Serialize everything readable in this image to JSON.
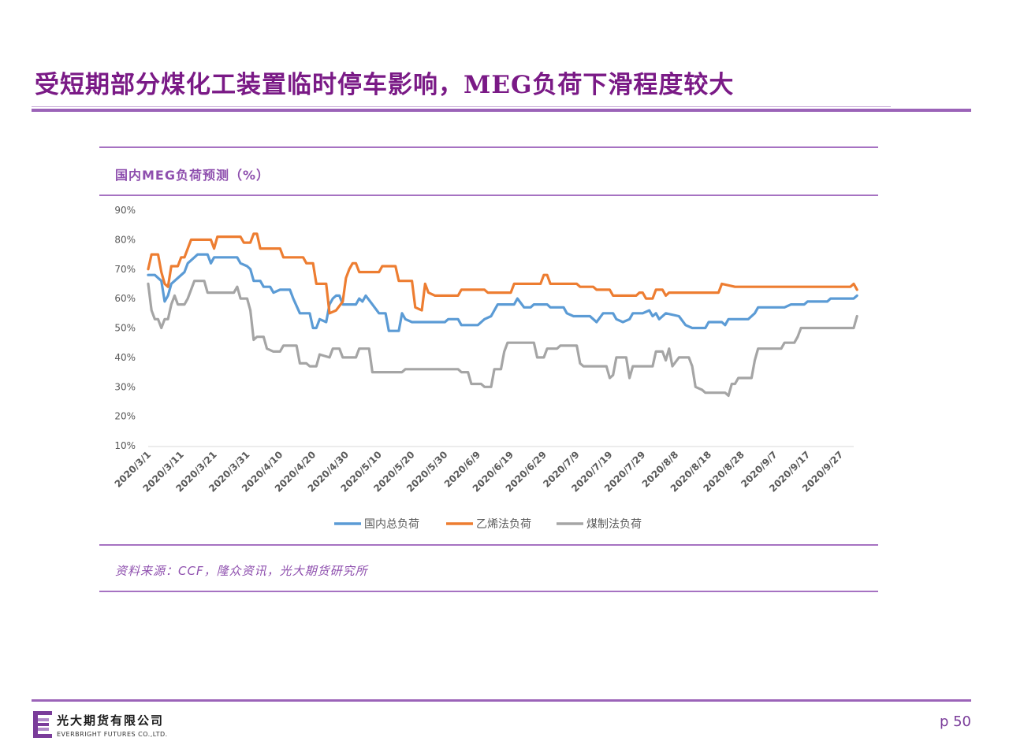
{
  "slide": {
    "title": "受短期部分煤化工装置临时停车影响，MEG负荷下滑程度较大",
    "page_number": "p 50",
    "company_cn": "光大期货有限公司",
    "company_en": "EVERBRIGHT FUTURES CO.,LTD.",
    "source": "资料来源：CCF，隆众资讯，光大期货研究所"
  },
  "colors": {
    "accent": "#8e4fae",
    "total": "#5b9bd5",
    "ethylene": "#ed7d31",
    "coal": "#a5a5a5"
  },
  "chart_data": {
    "type": "line",
    "title": "国内MEG负荷预测（%）",
    "ylim": [
      0.1,
      0.9
    ],
    "ytick_labels": [
      "10%",
      "20%",
      "30%",
      "40%",
      "50%",
      "60%",
      "70%",
      "80%",
      "90%"
    ],
    "ytick_values": [
      0.1,
      0.2,
      0.3,
      0.4,
      0.5,
      0.6,
      0.7,
      0.8,
      0.9
    ],
    "x_start": "2020/3/1",
    "x_end": "2020/10/1",
    "xtick_labels": [
      "2020/3/1",
      "2020/3/11",
      "2020/3/21",
      "2020/3/31",
      "2020/4/10",
      "2020/4/20",
      "2020/4/30",
      "2020/5/10",
      "2020/5/20",
      "2020/5/30",
      "2020/6/9",
      "2020/6/19",
      "2020/6/29",
      "2020/7/9",
      "2020/7/19",
      "2020/7/29",
      "2020/8/8",
      "2020/8/18",
      "2020/8/28",
      "2020/9/7",
      "2020/9/17",
      "2020/9/27"
    ],
    "grid": false,
    "legend_position": "bottom",
    "series": [
      {
        "name": "国内总负荷",
        "color": "#5b9bd5",
        "points": [
          [
            "2020/3/1",
            0.68
          ],
          [
            "2020/3/3",
            0.68
          ],
          [
            "2020/3/5",
            0.66
          ],
          [
            "2020/3/6",
            0.59
          ],
          [
            "2020/3/7",
            0.61
          ],
          [
            "2020/3/8",
            0.65
          ],
          [
            "2020/3/10",
            0.67
          ],
          [
            "2020/3/12",
            0.69
          ],
          [
            "2020/3/13",
            0.72
          ],
          [
            "2020/3/15",
            0.74
          ],
          [
            "2020/3/16",
            0.75
          ],
          [
            "2020/3/19",
            0.75
          ],
          [
            "2020/3/20",
            0.72
          ],
          [
            "2020/3/21",
            0.74
          ],
          [
            "2020/3/28",
            0.74
          ],
          [
            "2020/3/29",
            0.72
          ],
          [
            "2020/3/31",
            0.71
          ],
          [
            "2020/4/1",
            0.7
          ],
          [
            "2020/4/2",
            0.66
          ],
          [
            "2020/4/4",
            0.66
          ],
          [
            "2020/4/5",
            0.64
          ],
          [
            "2020/4/7",
            0.64
          ],
          [
            "2020/4/8",
            0.62
          ],
          [
            "2020/4/10",
            0.63
          ],
          [
            "2020/4/13",
            0.63
          ],
          [
            "2020/4/14",
            0.6
          ],
          [
            "2020/4/16",
            0.55
          ],
          [
            "2020/4/19",
            0.55
          ],
          [
            "2020/4/20",
            0.5
          ],
          [
            "2020/4/21",
            0.5
          ],
          [
            "2020/4/22",
            0.53
          ],
          [
            "2020/4/24",
            0.52
          ],
          [
            "2020/4/25",
            0.58
          ],
          [
            "2020/4/26",
            0.6
          ],
          [
            "2020/4/27",
            0.61
          ],
          [
            "2020/4/28",
            0.61
          ],
          [
            "2020/4/29",
            0.58
          ],
          [
            "2020/5/3",
            0.58
          ],
          [
            "2020/5/4",
            0.6
          ],
          [
            "2020/5/5",
            0.59
          ],
          [
            "2020/5/6",
            0.61
          ],
          [
            "2020/5/8",
            0.58
          ],
          [
            "2020/5/10",
            0.55
          ],
          [
            "2020/5/12",
            0.55
          ],
          [
            "2020/5/13",
            0.49
          ],
          [
            "2020/5/16",
            0.49
          ],
          [
            "2020/5/17",
            0.55
          ],
          [
            "2020/5/18",
            0.53
          ],
          [
            "2020/5/20",
            0.52
          ],
          [
            "2020/5/30",
            0.52
          ],
          [
            "2020/5/31",
            0.53
          ],
          [
            "2020/6/3",
            0.53
          ],
          [
            "2020/6/4",
            0.51
          ],
          [
            "2020/6/9",
            0.51
          ],
          [
            "2020/6/11",
            0.53
          ],
          [
            "2020/6/13",
            0.54
          ],
          [
            "2020/6/15",
            0.58
          ],
          [
            "2020/6/20",
            0.58
          ],
          [
            "2020/6/21",
            0.6
          ],
          [
            "2020/6/23",
            0.57
          ],
          [
            "2020/6/25",
            0.57
          ],
          [
            "2020/6/26",
            0.58
          ],
          [
            "2020/6/30",
            0.58
          ],
          [
            "2020/7/1",
            0.57
          ],
          [
            "2020/7/5",
            0.57
          ],
          [
            "2020/7/6",
            0.55
          ],
          [
            "2020/7/8",
            0.54
          ],
          [
            "2020/7/13",
            0.54
          ],
          [
            "2020/7/15",
            0.52
          ],
          [
            "2020/7/17",
            0.55
          ],
          [
            "2020/7/20",
            0.55
          ],
          [
            "2020/7/21",
            0.53
          ],
          [
            "2020/7/23",
            0.52
          ],
          [
            "2020/7/25",
            0.53
          ],
          [
            "2020/7/26",
            0.55
          ],
          [
            "2020/7/29",
            0.55
          ],
          [
            "2020/7/31",
            0.56
          ],
          [
            "2020/8/1",
            0.54
          ],
          [
            "2020/8/2",
            0.55
          ],
          [
            "2020/8/3",
            0.53
          ],
          [
            "2020/8/5",
            0.55
          ],
          [
            "2020/8/9",
            0.54
          ],
          [
            "2020/8/11",
            0.51
          ],
          [
            "2020/8/13",
            0.5
          ],
          [
            "2020/8/17",
            0.5
          ],
          [
            "2020/8/18",
            0.52
          ],
          [
            "2020/8/22",
            0.52
          ],
          [
            "2020/8/23",
            0.51
          ],
          [
            "2020/8/24",
            0.53
          ],
          [
            "2020/8/25",
            0.53
          ],
          [
            "2020/8/30",
            0.53
          ],
          [
            "2020/9/1",
            0.55
          ],
          [
            "2020/9/2",
            0.57
          ],
          [
            "2020/9/10",
            0.57
          ],
          [
            "2020/9/12",
            0.58
          ],
          [
            "2020/9/16",
            0.58
          ],
          [
            "2020/9/17",
            0.59
          ],
          [
            "2020/9/23",
            0.59
          ],
          [
            "2020/9/24",
            0.6
          ],
          [
            "2020/10/1",
            0.6
          ],
          [
            "2020/10/2",
            0.61
          ]
        ]
      },
      {
        "name": "乙烯法负荷",
        "color": "#ed7d31",
        "points": [
          [
            "2020/3/1",
            0.7
          ],
          [
            "2020/3/2",
            0.75
          ],
          [
            "2020/3/4",
            0.75
          ],
          [
            "2020/3/5",
            0.69
          ],
          [
            "2020/3/6",
            0.65
          ],
          [
            "2020/3/7",
            0.64
          ],
          [
            "2020/3/8",
            0.71
          ],
          [
            "2020/3/10",
            0.71
          ],
          [
            "2020/3/11",
            0.74
          ],
          [
            "2020/3/12",
            0.74
          ],
          [
            "2020/3/14",
            0.8
          ],
          [
            "2020/3/20",
            0.8
          ],
          [
            "2020/3/21",
            0.77
          ],
          [
            "2020/3/22",
            0.81
          ],
          [
            "2020/3/29",
            0.81
          ],
          [
            "2020/3/30",
            0.79
          ],
          [
            "2020/4/1",
            0.79
          ],
          [
            "2020/4/2",
            0.82
          ],
          [
            "2020/4/3",
            0.82
          ],
          [
            "2020/4/4",
            0.77
          ],
          [
            "2020/4/10",
            0.77
          ],
          [
            "2020/4/11",
            0.74
          ],
          [
            "2020/4/17",
            0.74
          ],
          [
            "2020/4/18",
            0.72
          ],
          [
            "2020/4/20",
            0.72
          ],
          [
            "2020/4/21",
            0.65
          ],
          [
            "2020/4/24",
            0.65
          ],
          [
            "2020/4/25",
            0.55
          ],
          [
            "2020/4/27",
            0.56
          ],
          [
            "2020/4/29",
            0.59
          ],
          [
            "2020/4/30",
            0.67
          ],
          [
            "2020/5/1",
            0.7
          ],
          [
            "2020/5/2",
            0.72
          ],
          [
            "2020/5/3",
            0.72
          ],
          [
            "2020/5/4",
            0.69
          ],
          [
            "2020/5/10",
            0.69
          ],
          [
            "2020/5/11",
            0.71
          ],
          [
            "2020/5/15",
            0.71
          ],
          [
            "2020/5/16",
            0.66
          ],
          [
            "2020/5/20",
            0.66
          ],
          [
            "2020/5/21",
            0.57
          ],
          [
            "2020/5/23",
            0.56
          ],
          [
            "2020/5/24",
            0.65
          ],
          [
            "2020/5/25",
            0.62
          ],
          [
            "2020/5/27",
            0.61
          ],
          [
            "2020/6/3",
            0.61
          ],
          [
            "2020/6/4",
            0.63
          ],
          [
            "2020/6/11",
            0.63
          ],
          [
            "2020/6/12",
            0.62
          ],
          [
            "2020/6/19",
            0.62
          ],
          [
            "2020/6/20",
            0.65
          ],
          [
            "2020/6/28",
            0.65
          ],
          [
            "2020/6/29",
            0.68
          ],
          [
            "2020/6/30",
            0.68
          ],
          [
            "2020/7/1",
            0.65
          ],
          [
            "2020/7/9",
            0.65
          ],
          [
            "2020/7/10",
            0.64
          ],
          [
            "2020/7/14",
            0.64
          ],
          [
            "2020/7/15",
            0.63
          ],
          [
            "2020/7/19",
            0.63
          ],
          [
            "2020/7/20",
            0.61
          ],
          [
            "2020/7/27",
            0.61
          ],
          [
            "2020/7/28",
            0.62
          ],
          [
            "2020/7/29",
            0.62
          ],
          [
            "2020/7/30",
            0.6
          ],
          [
            "2020/8/1",
            0.6
          ],
          [
            "2020/8/2",
            0.63
          ],
          [
            "2020/8/4",
            0.63
          ],
          [
            "2020/8/5",
            0.61
          ],
          [
            "2020/8/6",
            0.62
          ],
          [
            "2020/8/21",
            0.62
          ],
          [
            "2020/8/22",
            0.65
          ],
          [
            "2020/8/26",
            0.64
          ],
          [
            "2020/9/30",
            0.64
          ],
          [
            "2020/10/1",
            0.65
          ],
          [
            "2020/10/2",
            0.63
          ]
        ]
      },
      {
        "name": "煤制法负荷",
        "color": "#a5a5a5",
        "points": [
          [
            "2020/3/1",
            0.65
          ],
          [
            "2020/3/2",
            0.56
          ],
          [
            "2020/3/3",
            0.53
          ],
          [
            "2020/3/4",
            0.53
          ],
          [
            "2020/3/5",
            0.5
          ],
          [
            "2020/3/6",
            0.53
          ],
          [
            "2020/3/7",
            0.53
          ],
          [
            "2020/3/8",
            0.58
          ],
          [
            "2020/3/9",
            0.61
          ],
          [
            "2020/3/10",
            0.58
          ],
          [
            "2020/3/12",
            0.58
          ],
          [
            "2020/3/13",
            0.6
          ],
          [
            "2020/3/15",
            0.66
          ],
          [
            "2020/3/18",
            0.66
          ],
          [
            "2020/3/19",
            0.62
          ],
          [
            "2020/3/27",
            0.62
          ],
          [
            "2020/3/28",
            0.64
          ],
          [
            "2020/3/29",
            0.6
          ],
          [
            "2020/3/31",
            0.6
          ],
          [
            "2020/4/1",
            0.56
          ],
          [
            "2020/4/2",
            0.46
          ],
          [
            "2020/4/3",
            0.47
          ],
          [
            "2020/4/5",
            0.47
          ],
          [
            "2020/4/6",
            0.43
          ],
          [
            "2020/4/8",
            0.42
          ],
          [
            "2020/4/10",
            0.42
          ],
          [
            "2020/4/11",
            0.44
          ],
          [
            "2020/4/15",
            0.44
          ],
          [
            "2020/4/16",
            0.38
          ],
          [
            "2020/4/18",
            0.38
          ],
          [
            "2020/4/19",
            0.37
          ],
          [
            "2020/4/21",
            0.37
          ],
          [
            "2020/4/22",
            0.41
          ],
          [
            "2020/4/25",
            0.4
          ],
          [
            "2020/4/26",
            0.43
          ],
          [
            "2020/4/28",
            0.43
          ],
          [
            "2020/4/29",
            0.4
          ],
          [
            "2020/5/3",
            0.4
          ],
          [
            "2020/5/4",
            0.43
          ],
          [
            "2020/5/7",
            0.43
          ],
          [
            "2020/5/8",
            0.35
          ],
          [
            "2020/5/17",
            0.35
          ],
          [
            "2020/5/18",
            0.36
          ],
          [
            "2020/6/3",
            0.36
          ],
          [
            "2020/6/4",
            0.35
          ],
          [
            "2020/6/6",
            0.35
          ],
          [
            "2020/6/7",
            0.31
          ],
          [
            "2020/6/10",
            0.31
          ],
          [
            "2020/6/11",
            0.3
          ],
          [
            "2020/6/13",
            0.3
          ],
          [
            "2020/6/14",
            0.36
          ],
          [
            "2020/6/16",
            0.36
          ],
          [
            "2020/6/17",
            0.42
          ],
          [
            "2020/6/18",
            0.45
          ],
          [
            "2020/6/26",
            0.45
          ],
          [
            "2020/6/27",
            0.4
          ],
          [
            "2020/6/29",
            0.4
          ],
          [
            "2020/6/30",
            0.43
          ],
          [
            "2020/7/3",
            0.43
          ],
          [
            "2020/7/4",
            0.44
          ],
          [
            "2020/7/9",
            0.44
          ],
          [
            "2020/7/10",
            0.38
          ],
          [
            "2020/7/11",
            0.37
          ],
          [
            "2020/7/18",
            0.37
          ],
          [
            "2020/7/19",
            0.33
          ],
          [
            "2020/7/20",
            0.34
          ],
          [
            "2020/7/21",
            0.4
          ],
          [
            "2020/7/24",
            0.4
          ],
          [
            "2020/7/25",
            0.33
          ],
          [
            "2020/7/26",
            0.37
          ],
          [
            "2020/8/1",
            0.37
          ],
          [
            "2020/8/2",
            0.42
          ],
          [
            "2020/8/4",
            0.42
          ],
          [
            "2020/8/5",
            0.39
          ],
          [
            "2020/8/6",
            0.43
          ],
          [
            "2020/8/7",
            0.37
          ],
          [
            "2020/8/9",
            0.4
          ],
          [
            "2020/8/12",
            0.4
          ],
          [
            "2020/8/13",
            0.37
          ],
          [
            "2020/8/14",
            0.3
          ],
          [
            "2020/8/16",
            0.29
          ],
          [
            "2020/8/17",
            0.28
          ],
          [
            "2020/8/23",
            0.28
          ],
          [
            "2020/8/24",
            0.27
          ],
          [
            "2020/8/25",
            0.31
          ],
          [
            "2020/8/26",
            0.31
          ],
          [
            "2020/8/27",
            0.33
          ],
          [
            "2020/8/31",
            0.33
          ],
          [
            "2020/9/1",
            0.39
          ],
          [
            "2020/9/2",
            0.43
          ],
          [
            "2020/9/9",
            0.43
          ],
          [
            "2020/9/10",
            0.45
          ],
          [
            "2020/9/13",
            0.45
          ],
          [
            "2020/9/14",
            0.47
          ],
          [
            "2020/9/15",
            0.5
          ],
          [
            "2020/9/30",
            0.5
          ],
          [
            "2020/10/1",
            0.5
          ],
          [
            "2020/10/2",
            0.54
          ]
        ]
      }
    ]
  }
}
